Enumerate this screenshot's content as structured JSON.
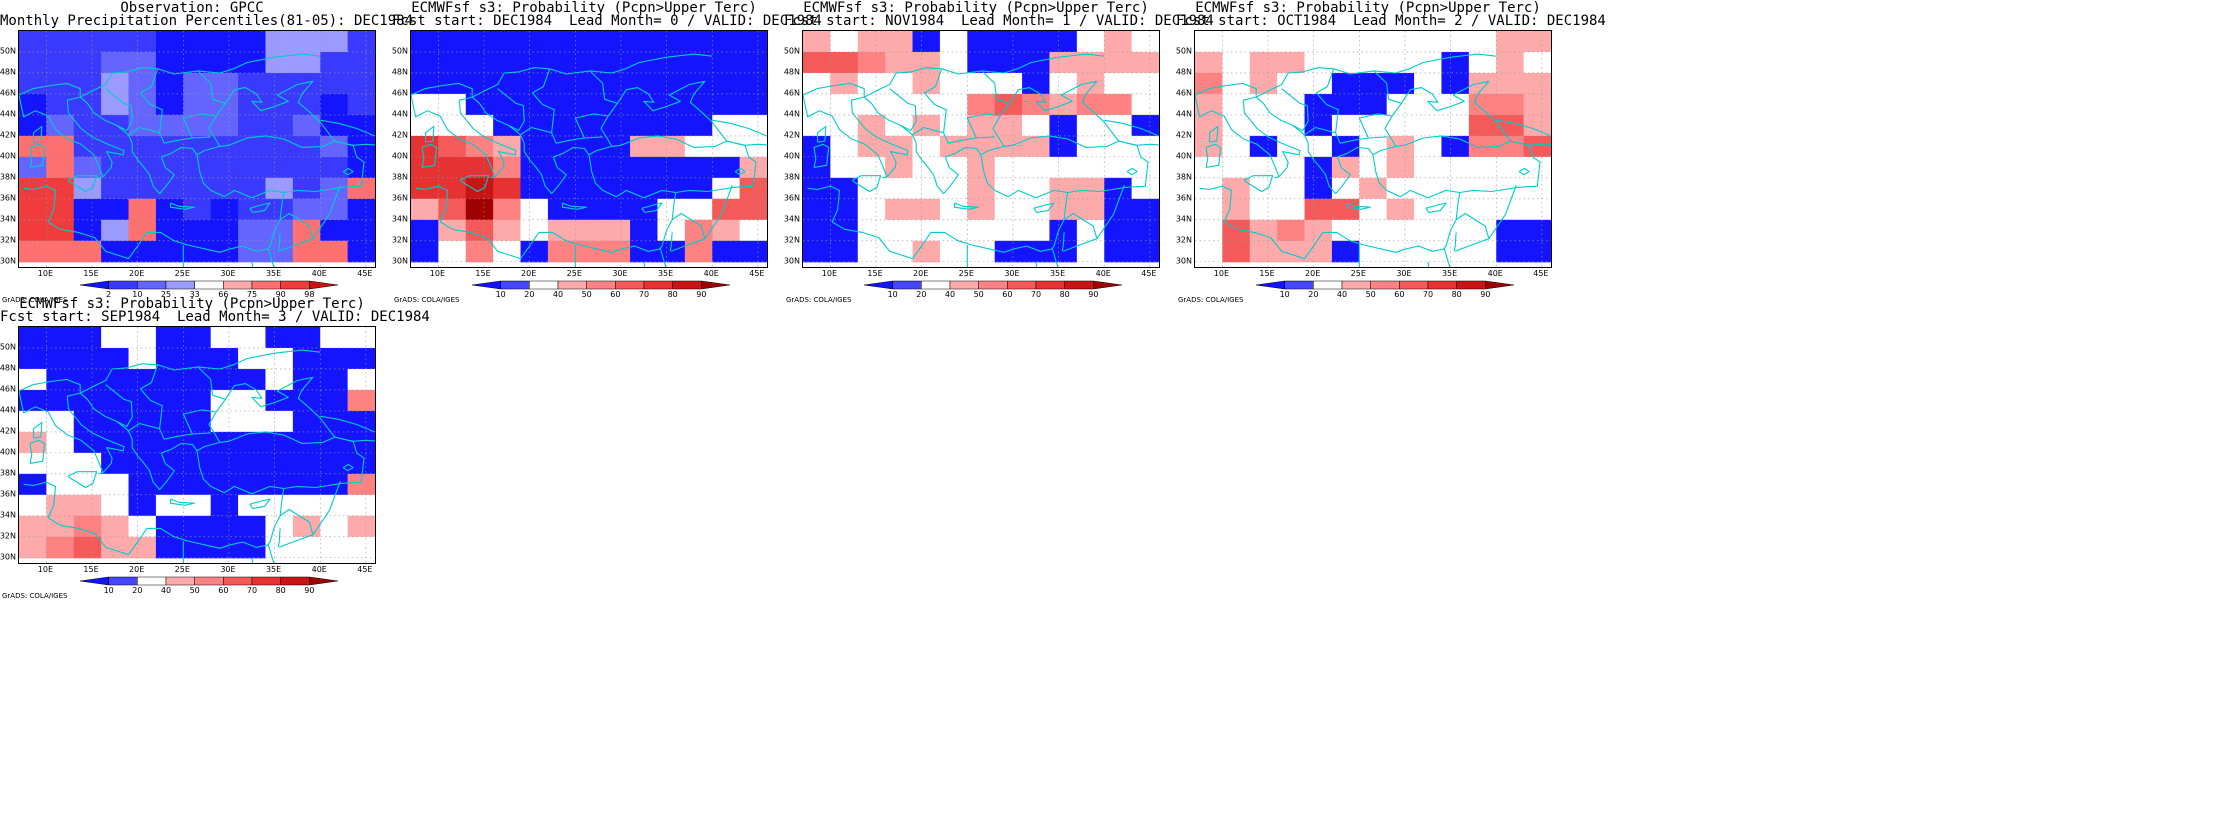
{
  "credit": "GrADS: COLA/IGES",
  "x_ticks": [
    "10E",
    "15E",
    "20E",
    "25E",
    "30E",
    "35E",
    "40E",
    "45E"
  ],
  "y_ticks": [
    "50N",
    "48N",
    "46N",
    "44N",
    "42N",
    "40N",
    "38N",
    "36N",
    "34N",
    "32N",
    "30N"
  ],
  "coast_color": "#00cccc",
  "colorbars": {
    "percentile": {
      "labels": [
        "2",
        "10",
        "25",
        "33",
        "66",
        "75",
        "90",
        "98"
      ],
      "colors": [
        "#1414ff",
        "#3a3aff",
        "#6464ff",
        "#9a9aff",
        "#ffffff",
        "#ffaaaa",
        "#ff7070",
        "#f03c3c",
        "#c81414"
      ]
    },
    "probability": {
      "labels": [
        "10",
        "20",
        "40",
        "50",
        "60",
        "70",
        "80",
        "90"
      ],
      "colors": [
        "#1414ff",
        "#4646ff",
        "#ffffff",
        "#ffaaaa",
        "#ff8282",
        "#f55a5a",
        "#e63232",
        "#c81414",
        "#a00000"
      ]
    }
  },
  "panels": [
    {
      "id": "obs",
      "title1": "Observation: GPCC",
      "title2": "Monthly Precipitation Percentiles(81-05): DEC1984",
      "colorbar": "percentile",
      "chart_data": {
        "type": "heatmap",
        "x": [
          8.5,
          11.5,
          14.5,
          17.5,
          20.5,
          23.5,
          26.5,
          29.5,
          32.5,
          35.5,
          38.5,
          41.5,
          44.5
        ],
        "y": [
          51,
          49,
          47,
          45,
          43,
          41,
          39,
          37,
          35,
          33,
          31
        ],
        "grid": [
          [
            1,
            1,
            1,
            1,
            1,
            0,
            0,
            0,
            0,
            3,
            3,
            3,
            1
          ],
          [
            1,
            1,
            1,
            2,
            2,
            0,
            0,
            0,
            0,
            3,
            3,
            1,
            1
          ],
          [
            1,
            1,
            1,
            3,
            2,
            0,
            2,
            2,
            1,
            1,
            1,
            1,
            1
          ],
          [
            0,
            1,
            1,
            3,
            2,
            0,
            2,
            2,
            1,
            1,
            1,
            0,
            1
          ],
          [
            0,
            2,
            1,
            1,
            2,
            2,
            2,
            2,
            1,
            1,
            2,
            0,
            0
          ],
          [
            6,
            6,
            1,
            1,
            1,
            1,
            1,
            1,
            1,
            1,
            1,
            2,
            0
          ],
          [
            2,
            6,
            2,
            1,
            1,
            1,
            1,
            1,
            1,
            1,
            1,
            1,
            0
          ],
          [
            7,
            7,
            3,
            1,
            1,
            1,
            1,
            1,
            1,
            3,
            1,
            2,
            6
          ],
          [
            7,
            7,
            0,
            0,
            6,
            0,
            1,
            0,
            1,
            1,
            2,
            2,
            0
          ],
          [
            7,
            7,
            0,
            3,
            6,
            0,
            0,
            0,
            2,
            2,
            6,
            0,
            0
          ],
          [
            6,
            6,
            6,
            0,
            0,
            0,
            0,
            0,
            2,
            2,
            6,
            6,
            0
          ]
        ]
      }
    },
    {
      "id": "lead0",
      "title1": "ECMWFsf s3: Probability (Pcpn>Upper Terc)",
      "title2": "Fcst start: DEC1984  Lead Month= 0 / VALID: DEC1984",
      "colorbar": "probability",
      "chart_data": {
        "type": "heatmap",
        "x": [
          8.5,
          11.5,
          14.5,
          17.5,
          20.5,
          23.5,
          26.5,
          29.5,
          32.5,
          35.5,
          38.5,
          41.5,
          44.5
        ],
        "y": [
          51,
          49,
          47,
          45,
          43,
          41,
          39,
          37,
          35,
          33,
          31
        ],
        "grid": [
          [
            0,
            0,
            0,
            0,
            0,
            0,
            0,
            0,
            0,
            0,
            0,
            0,
            0
          ],
          [
            0,
            0,
            0,
            0,
            0,
            0,
            0,
            0,
            0,
            0,
            0,
            0,
            0
          ],
          [
            0,
            0,
            0,
            0,
            0,
            0,
            0,
            0,
            0,
            0,
            0,
            0,
            0
          ],
          [
            2,
            2,
            0,
            0,
            0,
            0,
            0,
            0,
            0,
            0,
            0,
            0,
            0
          ],
          [
            2,
            2,
            2,
            0,
            0,
            0,
            0,
            0,
            0,
            0,
            0,
            2,
            2
          ],
          [
            6,
            5,
            4,
            3,
            0,
            0,
            0,
            0,
            3,
            3,
            2,
            2,
            2
          ],
          [
            6,
            6,
            6,
            4,
            0,
            0,
            0,
            0,
            0,
            0,
            0,
            0,
            3
          ],
          [
            6,
            6,
            7,
            6,
            0,
            0,
            0,
            0,
            0,
            0,
            0,
            2,
            5
          ],
          [
            3,
            5,
            8,
            4,
            2,
            0,
            0,
            0,
            0,
            2,
            2,
            5,
            5
          ],
          [
            0,
            3,
            5,
            3,
            2,
            3,
            3,
            3,
            0,
            2,
            4,
            3,
            2
          ],
          [
            0,
            2,
            4,
            2,
            0,
            4,
            4,
            4,
            0,
            0,
            4,
            0,
            0
          ]
        ]
      }
    },
    {
      "id": "lead1",
      "title1": "ECMWFsf s3: Probability (Pcpn>Upper Terc)",
      "title2": "Fcst start: NOV1984  Lead Month= 1 / VALID: DEC1984",
      "colorbar": "probability",
      "chart_data": {
        "type": "heatmap",
        "x": [
          8.5,
          11.5,
          14.5,
          17.5,
          20.5,
          23.5,
          26.5,
          29.5,
          32.5,
          35.5,
          38.5,
          41.5,
          44.5
        ],
        "y": [
          51,
          49,
          47,
          45,
          43,
          41,
          39,
          37,
          35,
          33,
          31
        ],
        "grid": [
          [
            3,
            2,
            3,
            3,
            0,
            2,
            0,
            0,
            0,
            0,
            2,
            3,
            2
          ],
          [
            5,
            5,
            4,
            3,
            3,
            2,
            0,
            0,
            0,
            3,
            3,
            3,
            3
          ],
          [
            2,
            3,
            2,
            2,
            3,
            2,
            2,
            2,
            0,
            2,
            3,
            2,
            2
          ],
          [
            2,
            2,
            2,
            2,
            2,
            2,
            4,
            5,
            4,
            3,
            4,
            4,
            2
          ],
          [
            2,
            2,
            3,
            2,
            3,
            2,
            3,
            3,
            2,
            0,
            2,
            2,
            0
          ],
          [
            0,
            2,
            3,
            3,
            2,
            3,
            3,
            3,
            3,
            0,
            2,
            2,
            2
          ],
          [
            0,
            2,
            2,
            3,
            2,
            2,
            3,
            2,
            2,
            2,
            2,
            2,
            2
          ],
          [
            0,
            0,
            2,
            2,
            2,
            2,
            3,
            2,
            2,
            3,
            3,
            0,
            2
          ],
          [
            0,
            0,
            2,
            3,
            3,
            2,
            3,
            2,
            2,
            3,
            3,
            0,
            0
          ],
          [
            0,
            0,
            2,
            2,
            2,
            2,
            2,
            2,
            2,
            0,
            2,
            0,
            0
          ],
          [
            0,
            0,
            2,
            2,
            3,
            2,
            2,
            0,
            0,
            0,
            2,
            0,
            0
          ]
        ]
      }
    },
    {
      "id": "lead2",
      "title1": "ECMWFsf s3: Probability (Pcpn>Upper Terc)",
      "title2": "Fcst start: OCT1984  Lead Month= 2 / VALID: DEC1984",
      "colorbar": "probability",
      "chart_data": {
        "type": "heatmap",
        "x": [
          8.5,
          11.5,
          14.5,
          17.5,
          20.5,
          23.5,
          26.5,
          29.5,
          32.5,
          35.5,
          38.5,
          41.5,
          44.5
        ],
        "y": [
          51,
          49,
          47,
          45,
          43,
          41,
          39,
          37,
          35,
          33,
          31
        ],
        "grid": [
          [
            2,
            2,
            2,
            2,
            2,
            2,
            2,
            2,
            2,
            2,
            2,
            3,
            3
          ],
          [
            3,
            2,
            3,
            3,
            2,
            2,
            2,
            2,
            2,
            0,
            2,
            3,
            2
          ],
          [
            4,
            2,
            3,
            2,
            2,
            0,
            0,
            0,
            2,
            0,
            3,
            3,
            3
          ],
          [
            3,
            2,
            2,
            2,
            0,
            0,
            0,
            2,
            2,
            2,
            4,
            4,
            3
          ],
          [
            3,
            2,
            2,
            2,
            0,
            2,
            2,
            2,
            2,
            2,
            5,
            5,
            3
          ],
          [
            3,
            2,
            0,
            2,
            2,
            0,
            2,
            3,
            2,
            0,
            4,
            4,
            5
          ],
          [
            2,
            2,
            2,
            2,
            0,
            3,
            2,
            3,
            2,
            2,
            2,
            2,
            2
          ],
          [
            2,
            3,
            2,
            2,
            0,
            2,
            3,
            2,
            2,
            2,
            2,
            2,
            2
          ],
          [
            2,
            3,
            2,
            2,
            5,
            5,
            2,
            3,
            2,
            2,
            2,
            2,
            2
          ],
          [
            2,
            5,
            3,
            4,
            3,
            2,
            2,
            2,
            2,
            2,
            2,
            0,
            0
          ],
          [
            2,
            5,
            3,
            3,
            3,
            0,
            2,
            2,
            2,
            2,
            2,
            0,
            0
          ]
        ]
      }
    },
    {
      "id": "lead3",
      "title1": "ECMWFsf s3: Probability (Pcpn>Upper Terc)",
      "title2": "Fcst start: SEP1984  Lead Month= 3 / VALID: DEC1984",
      "colorbar": "probability",
      "chart_data": {
        "type": "heatmap",
        "x": [
          8.5,
          11.5,
          14.5,
          17.5,
          20.5,
          23.5,
          26.5,
          29.5,
          32.5,
          35.5,
          38.5,
          41.5,
          44.5
        ],
        "y": [
          51,
          49,
          47,
          45,
          43,
          41,
          39,
          37,
          35,
          33,
          31
        ],
        "grid": [
          [
            0,
            0,
            0,
            2,
            2,
            0,
            0,
            2,
            2,
            0,
            0,
            2,
            2
          ],
          [
            0,
            0,
            0,
            0,
            2,
            0,
            0,
            0,
            2,
            2,
            0,
            0,
            0
          ],
          [
            2,
            0,
            0,
            0,
            0,
            0,
            0,
            0,
            0,
            2,
            0,
            0,
            2
          ],
          [
            0,
            0,
            0,
            0,
            0,
            0,
            0,
            2,
            2,
            0,
            0,
            0,
            4
          ],
          [
            2,
            2,
            0,
            0,
            0,
            0,
            0,
            2,
            2,
            2,
            0,
            0,
            0
          ],
          [
            3,
            2,
            0,
            0,
            0,
            0,
            0,
            0,
            0,
            0,
            0,
            0,
            0
          ],
          [
            2,
            2,
            2,
            0,
            0,
            0,
            0,
            0,
            0,
            0,
            0,
            0,
            0
          ],
          [
            0,
            2,
            2,
            2,
            0,
            0,
            0,
            0,
            0,
            0,
            0,
            0,
            4
          ],
          [
            2,
            3,
            3,
            2,
            0,
            2,
            2,
            0,
            2,
            2,
            2,
            2,
            2
          ],
          [
            3,
            3,
            4,
            3,
            2,
            0,
            0,
            0,
            0,
            2,
            3,
            2,
            3
          ],
          [
            3,
            4,
            5,
            3,
            3,
            0,
            0,
            0,
            0,
            2,
            2,
            2,
            2
          ]
        ]
      }
    }
  ]
}
